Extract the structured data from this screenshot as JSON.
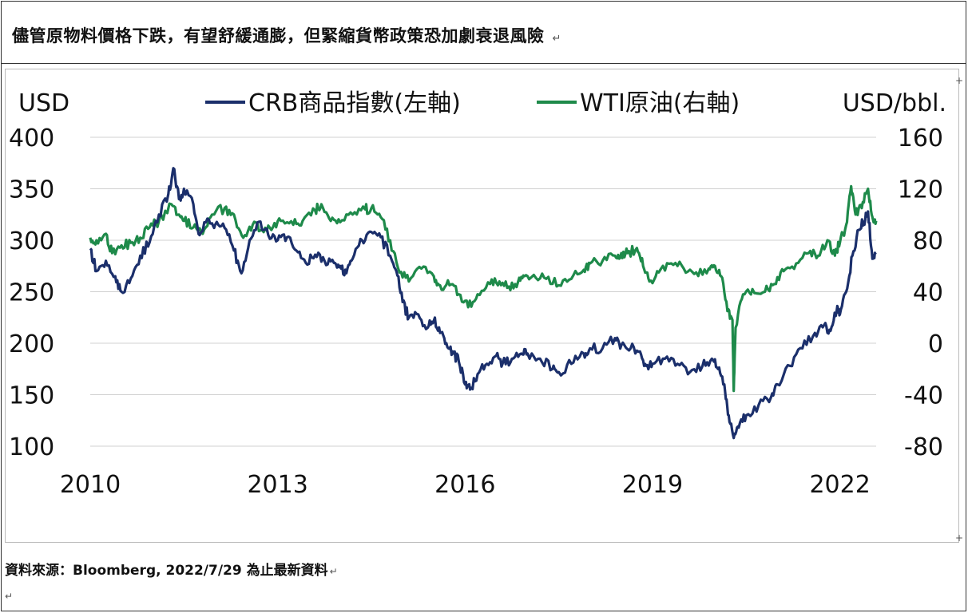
{
  "title": "儘管原物料價格下跌，有望舒緩通膨，但緊縮貨幣政策恐加劇衰退風險",
  "title_mark": "↵",
  "source": "資料來源：Bloomberg, 2022/7/29 為止最新資料",
  "source_mark": "↵",
  "para_mark": "↵",
  "chart_data": {
    "type": "line",
    "left_axis_label": "USD",
    "right_axis_label": "USD/bbl.",
    "left_ylim": [
      100,
      400
    ],
    "left_ticks": [
      "400",
      "350",
      "300",
      "250",
      "200",
      "150",
      "100"
    ],
    "right_ylim": [
      -80,
      160
    ],
    "right_ticks": [
      "160",
      "120",
      "80",
      "40",
      "0",
      "-40",
      "-80"
    ],
    "xlim": [
      2010.0,
      2022.58
    ],
    "x_ticks": [
      {
        "value": 2010,
        "label": "2010"
      },
      {
        "value": 2013,
        "label": "2013"
      },
      {
        "value": 2016,
        "label": "2016"
      },
      {
        "value": 2019,
        "label": "2019"
      },
      {
        "value": 2022,
        "label": "2022"
      }
    ],
    "grid": true,
    "legend_position": "top",
    "series": [
      {
        "name": "CRB商品指數(左軸)",
        "axis": "left",
        "color": "#1b2f6b",
        "points": [
          [
            2010.0,
            292
          ],
          [
            2010.1,
            270
          ],
          [
            2010.25,
            280
          ],
          [
            2010.4,
            265
          ],
          [
            2010.5,
            250
          ],
          [
            2010.65,
            263
          ],
          [
            2010.8,
            285
          ],
          [
            2010.95,
            298
          ],
          [
            2011.1,
            325
          ],
          [
            2011.25,
            345
          ],
          [
            2011.33,
            370
          ],
          [
            2011.42,
            340
          ],
          [
            2011.5,
            350
          ],
          [
            2011.65,
            335
          ],
          [
            2011.75,
            305
          ],
          [
            2011.9,
            320
          ],
          [
            2012.0,
            315
          ],
          [
            2012.15,
            312
          ],
          [
            2012.3,
            290
          ],
          [
            2012.42,
            268
          ],
          [
            2012.55,
            300
          ],
          [
            2012.7,
            318
          ],
          [
            2012.85,
            305
          ],
          [
            2013.0,
            300
          ],
          [
            2013.15,
            303
          ],
          [
            2013.3,
            290
          ],
          [
            2013.45,
            278
          ],
          [
            2013.6,
            286
          ],
          [
            2013.75,
            280
          ],
          [
            2013.9,
            278
          ],
          [
            2014.0,
            275
          ],
          [
            2014.1,
            268
          ],
          [
            2014.2,
            282
          ],
          [
            2014.35,
            300
          ],
          [
            2014.5,
            308
          ],
          [
            2014.65,
            303
          ],
          [
            2014.8,
            285
          ],
          [
            2014.9,
            270
          ],
          [
            2015.0,
            240
          ],
          [
            2015.1,
            225
          ],
          [
            2015.25,
            228
          ],
          [
            2015.4,
            215
          ],
          [
            2015.5,
            222
          ],
          [
            2015.6,
            210
          ],
          [
            2015.7,
            200
          ],
          [
            2015.8,
            192
          ],
          [
            2015.9,
            182
          ],
          [
            2016.0,
            160
          ],
          [
            2016.08,
            155
          ],
          [
            2016.2,
            170
          ],
          [
            2016.35,
            180
          ],
          [
            2016.5,
            188
          ],
          [
            2016.6,
            180
          ],
          [
            2016.75,
            185
          ],
          [
            2016.9,
            190
          ],
          [
            2017.0,
            190
          ],
          [
            2017.2,
            185
          ],
          [
            2017.4,
            175
          ],
          [
            2017.5,
            172
          ],
          [
            2017.7,
            180
          ],
          [
            2017.9,
            190
          ],
          [
            2018.0,
            195
          ],
          [
            2018.2,
            195
          ],
          [
            2018.4,
            205
          ],
          [
            2018.5,
            198
          ],
          [
            2018.65,
            195
          ],
          [
            2018.8,
            192
          ],
          [
            2018.9,
            178
          ],
          [
            2019.0,
            180
          ],
          [
            2019.2,
            185
          ],
          [
            2019.4,
            180
          ],
          [
            2019.6,
            172
          ],
          [
            2019.8,
            178
          ],
          [
            2019.95,
            185
          ],
          [
            2020.05,
            175
          ],
          [
            2020.15,
            160
          ],
          [
            2020.22,
            130
          ],
          [
            2020.3,
            108
          ],
          [
            2020.38,
            118
          ],
          [
            2020.5,
            130
          ],
          [
            2020.7,
            140
          ],
          [
            2020.9,
            148
          ],
          [
            2021.0,
            160
          ],
          [
            2021.2,
            178
          ],
          [
            2021.4,
            195
          ],
          [
            2021.6,
            210
          ],
          [
            2021.75,
            218
          ],
          [
            2021.85,
            212
          ],
          [
            2021.95,
            232
          ],
          [
            2022.0,
            228
          ],
          [
            2022.1,
            250
          ],
          [
            2022.2,
            285
          ],
          [
            2022.3,
            310
          ],
          [
            2022.38,
            318
          ],
          [
            2022.45,
            328
          ],
          [
            2022.52,
            282
          ],
          [
            2022.58,
            288
          ]
        ]
      },
      {
        "name": "WTI原油(右軸)",
        "axis": "right",
        "color": "#1e8a4a",
        "points": [
          [
            2010.0,
            82
          ],
          [
            2010.1,
            80
          ],
          [
            2010.25,
            85
          ],
          [
            2010.35,
            70
          ],
          [
            2010.5,
            76
          ],
          [
            2010.65,
            78
          ],
          [
            2010.8,
            82
          ],
          [
            2010.95,
            90
          ],
          [
            2011.1,
            95
          ],
          [
            2011.3,
            108
          ],
          [
            2011.42,
            100
          ],
          [
            2011.5,
            95
          ],
          [
            2011.65,
            90
          ],
          [
            2011.8,
            85
          ],
          [
            2011.95,
            100
          ],
          [
            2012.15,
            105
          ],
          [
            2012.3,
            100
          ],
          [
            2012.45,
            82
          ],
          [
            2012.6,
            92
          ],
          [
            2012.75,
            88
          ],
          [
            2012.9,
            88
          ],
          [
            2013.05,
            95
          ],
          [
            2013.25,
            92
          ],
          [
            2013.4,
            95
          ],
          [
            2013.6,
            103
          ],
          [
            2013.7,
            108
          ],
          [
            2013.85,
            95
          ],
          [
            2014.0,
            94
          ],
          [
            2014.2,
            100
          ],
          [
            2014.4,
            104
          ],
          [
            2014.5,
            105
          ],
          [
            2014.65,
            98
          ],
          [
            2014.8,
            80
          ],
          [
            2014.95,
            55
          ],
          [
            2015.1,
            48
          ],
          [
            2015.3,
            58
          ],
          [
            2015.5,
            52
          ],
          [
            2015.6,
            45
          ],
          [
            2015.75,
            45
          ],
          [
            2015.9,
            38
          ],
          [
            2016.05,
            28
          ],
          [
            2016.2,
            38
          ],
          [
            2016.4,
            46
          ],
          [
            2016.55,
            48
          ],
          [
            2016.7,
            44
          ],
          [
            2016.85,
            48
          ],
          [
            2016.95,
            52
          ],
          [
            2017.1,
            53
          ],
          [
            2017.3,
            50
          ],
          [
            2017.5,
            45
          ],
          [
            2017.7,
            50
          ],
          [
            2017.9,
            57
          ],
          [
            2018.0,
            62
          ],
          [
            2018.2,
            64
          ],
          [
            2018.4,
            68
          ],
          [
            2018.5,
            70
          ],
          [
            2018.6,
            70
          ],
          [
            2018.75,
            74
          ],
          [
            2018.85,
            60
          ],
          [
            2018.95,
            48
          ],
          [
            2019.1,
            55
          ],
          [
            2019.3,
            62
          ],
          [
            2019.5,
            58
          ],
          [
            2019.7,
            55
          ],
          [
            2019.9,
            58
          ],
          [
            2020.0,
            60
          ],
          [
            2020.1,
            52
          ],
          [
            2020.2,
            25
          ],
          [
            2020.28,
            18
          ],
          [
            2020.3,
            -37
          ],
          [
            2020.33,
            12
          ],
          [
            2020.45,
            38
          ],
          [
            2020.6,
            42
          ],
          [
            2020.8,
            40
          ],
          [
            2020.95,
            46
          ],
          [
            2021.1,
            56
          ],
          [
            2021.3,
            62
          ],
          [
            2021.5,
            70
          ],
          [
            2021.65,
            68
          ],
          [
            2021.8,
            80
          ],
          [
            2021.92,
            68
          ],
          [
            2022.0,
            78
          ],
          [
            2022.1,
            92
          ],
          [
            2022.18,
            122
          ],
          [
            2022.25,
            100
          ],
          [
            2022.35,
            105
          ],
          [
            2022.45,
            120
          ],
          [
            2022.52,
            98
          ],
          [
            2022.58,
            95
          ]
        ]
      }
    ]
  }
}
